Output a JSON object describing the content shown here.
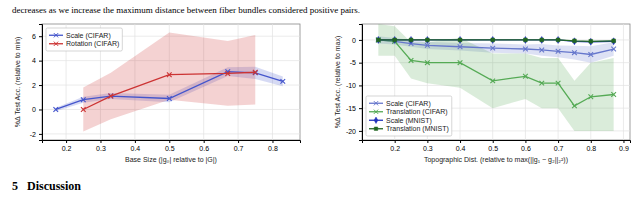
{
  "chart_data": [
    {
      "type": "line",
      "annotations": [
        "decreases as we increase the maximum distance between fiber bundles considered positive pairs.",
        "5   Discussion"
      ],
      "xlabel": "Base Size (|g₀| relative to |G|)",
      "ylabel": "%Δ Test Acc. (relative to min)",
      "xlim": [
        0.13,
        0.88
      ],
      "ylim": [
        -2.5,
        7.0
      ],
      "xticks": [
        0.2,
        0.3,
        0.4,
        0.5,
        0.6,
        0.7,
        0.8
      ],
      "yticks": [
        -2,
        0,
        2,
        4,
        6
      ],
      "grid": true,
      "legend": "upper left",
      "series": [
        {
          "name": "Scale (CIFAR)",
          "color": "#4455cc",
          "marker": "x",
          "x": [
            0.17,
            0.25,
            0.33,
            0.5,
            0.67,
            0.75,
            0.83
          ],
          "values": [
            0.0,
            0.8,
            1.1,
            0.9,
            3.1,
            3.0,
            2.3
          ],
          "lower": [
            -0.15,
            0.55,
            0.85,
            0.6,
            2.75,
            2.5,
            1.9
          ],
          "upper": [
            0.15,
            1.05,
            1.35,
            1.2,
            3.45,
            3.5,
            2.7
          ]
        },
        {
          "name": "Rotation (CIFAR)",
          "color": "#cc3333",
          "marker": "x",
          "x": [
            0.25,
            0.33,
            0.5,
            0.67,
            0.75
          ],
          "values": [
            0.0,
            1.1,
            2.85,
            2.95,
            3.05
          ],
          "lower": [
            -1.8,
            -0.8,
            0.8,
            0.3,
            0.4
          ],
          "upper": [
            1.8,
            3.0,
            6.3,
            5.6,
            6.1
          ]
        }
      ]
    },
    {
      "type": "line",
      "xlabel": "Topographic Dist. (relative to max(||g₁ − g₂||₂²))",
      "ylabel": "%Δ Test Acc. (relative to max)",
      "xlim": [
        0.1,
        0.92
      ],
      "ylim": [
        -22,
        3.5
      ],
      "xticks": [
        0.2,
        0.3,
        0.4,
        0.5,
        0.6,
        0.7,
        0.8,
        0.9
      ],
      "yticks": [
        0,
        -5,
        -10,
        -15,
        -20
      ],
      "grid": true,
      "legend": "lower left",
      "series": [
        {
          "name": "Scale (CIFAR)",
          "color": "#6677cc",
          "marker": "x",
          "x": [
            0.15,
            0.2,
            0.25,
            0.3,
            0.4,
            0.5,
            0.6,
            0.65,
            0.7,
            0.75,
            0.8,
            0.87
          ],
          "values": [
            0.0,
            -0.3,
            -0.8,
            -1.2,
            -1.5,
            -1.8,
            -2.0,
            -2.2,
            -2.5,
            -2.8,
            -3.2,
            -2.0
          ],
          "lower": [
            -0.8,
            -1.0,
            -1.5,
            -2.0,
            -2.3,
            -2.8,
            -3.0,
            -3.5,
            -3.8,
            -4.3,
            -5.0,
            -3.5
          ],
          "upper": [
            0.8,
            0.4,
            0.0,
            -0.4,
            -0.7,
            -0.8,
            -1.0,
            -0.9,
            -1.2,
            -1.3,
            -1.4,
            -0.5
          ]
        },
        {
          "name": "Translation (CIFAR)",
          "color": "#55aa55",
          "marker": "x",
          "x": [
            0.15,
            0.2,
            0.25,
            0.3,
            0.4,
            0.5,
            0.6,
            0.65,
            0.7,
            0.75,
            0.8,
            0.87
          ],
          "values": [
            0.0,
            -0.3,
            -4.5,
            -5.0,
            -5.0,
            -9.0,
            -8.0,
            -9.5,
            -9.5,
            -14.5,
            -12.5,
            -12.0
          ],
          "lower": [
            -3.5,
            -3.5,
            -8.5,
            -9.5,
            -10.5,
            -15.0,
            -13.0,
            -15.0,
            -15.0,
            -20.0,
            -20.0,
            -20.0
          ],
          "upper": [
            3.5,
            3.0,
            -0.5,
            -0.5,
            0.5,
            -3.0,
            -3.0,
            -4.0,
            -4.0,
            -9.0,
            -5.0,
            -4.0
          ]
        },
        {
          "name": "Scale (MNIST)",
          "color": "#2233bb",
          "marker": "diamond",
          "x": [
            0.15,
            0.2,
            0.25,
            0.3,
            0.4,
            0.5,
            0.6,
            0.65,
            0.7,
            0.75,
            0.8,
            0.87
          ],
          "values": [
            0.0,
            0.0,
            0.0,
            0.0,
            0.0,
            0.0,
            0.0,
            0.0,
            0.0,
            -0.3,
            -0.4,
            -0.3
          ]
        },
        {
          "name": "Translation (MNIST)",
          "color": "#226622",
          "marker": "square",
          "x": [
            0.15,
            0.2,
            0.25,
            0.3,
            0.4,
            0.5,
            0.6,
            0.65,
            0.7,
            0.75,
            0.8,
            0.87
          ],
          "values": [
            0.0,
            0.0,
            0.0,
            0.0,
            0.0,
            0.0,
            0.0,
            0.0,
            0.0,
            -0.2,
            -0.3,
            -0.2
          ]
        }
      ]
    }
  ]
}
